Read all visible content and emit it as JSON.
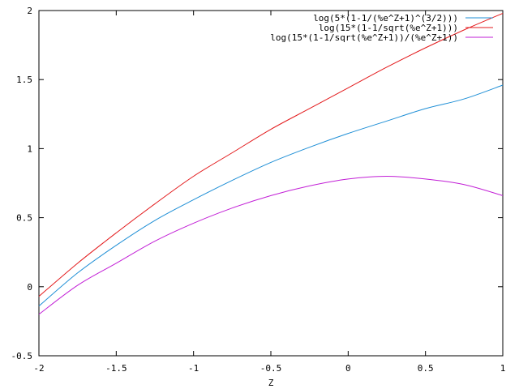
{
  "chart_data": {
    "type": "line",
    "title": "",
    "xlabel": "Z",
    "ylabel": "",
    "xlim": [
      -2,
      1
    ],
    "ylim": [
      -0.5,
      2
    ],
    "xticks": [
      -2,
      -1.5,
      -1,
      -0.5,
      0,
      0.5,
      1
    ],
    "xtick_labels": [
      "-2",
      "-1.5",
      "-1",
      "-0.5",
      "0",
      "0.5",
      "1"
    ],
    "yticks": [
      -0.5,
      0,
      0.5,
      1,
      1.5,
      2
    ],
    "ytick_labels": [
      "-0.5",
      "0",
      "0.5",
      "1",
      "1.5",
      "2"
    ],
    "grid": false,
    "legend_position": "top-right",
    "series": [
      {
        "name": "log(5*(1-1/(%e^Z+1)^(3/2)))",
        "color": "#1f8fd6",
        "x": [
          -2,
          -1.75,
          -1.5,
          -1.25,
          -1,
          -0.75,
          -0.5,
          -0.25,
          0,
          0.25,
          0.5,
          0.75,
          1
        ],
        "y": [
          -0.14,
          0.1,
          0.3,
          0.48,
          0.63,
          0.77,
          0.9,
          1.01,
          1.11,
          1.2,
          1.29,
          1.36,
          1.46
        ]
      },
      {
        "name": "log(15*(1-1/sqrt(%e^Z+1)))",
        "color": "#e31a1c",
        "x": [
          -2,
          -1.75,
          -1.5,
          -1.25,
          -1,
          -0.75,
          -0.5,
          -0.25,
          0,
          0.25,
          0.5,
          0.75,
          1
        ],
        "y": [
          -0.07,
          0.17,
          0.39,
          0.6,
          0.8,
          0.97,
          1.14,
          1.29,
          1.44,
          1.59,
          1.73,
          1.86,
          1.98
        ]
      },
      {
        "name": "log(15*(1-1/sqrt(%e^Z+1))/(%e^Z+1))",
        "color": "#c21fd6",
        "x": [
          -2,
          -1.75,
          -1.5,
          -1.25,
          -1,
          -0.75,
          -0.5,
          -0.25,
          0,
          0.25,
          0.5,
          0.75,
          1
        ],
        "y": [
          -0.2,
          0.01,
          0.17,
          0.33,
          0.46,
          0.57,
          0.66,
          0.73,
          0.78,
          0.8,
          0.78,
          0.74,
          0.66
        ]
      }
    ]
  }
}
